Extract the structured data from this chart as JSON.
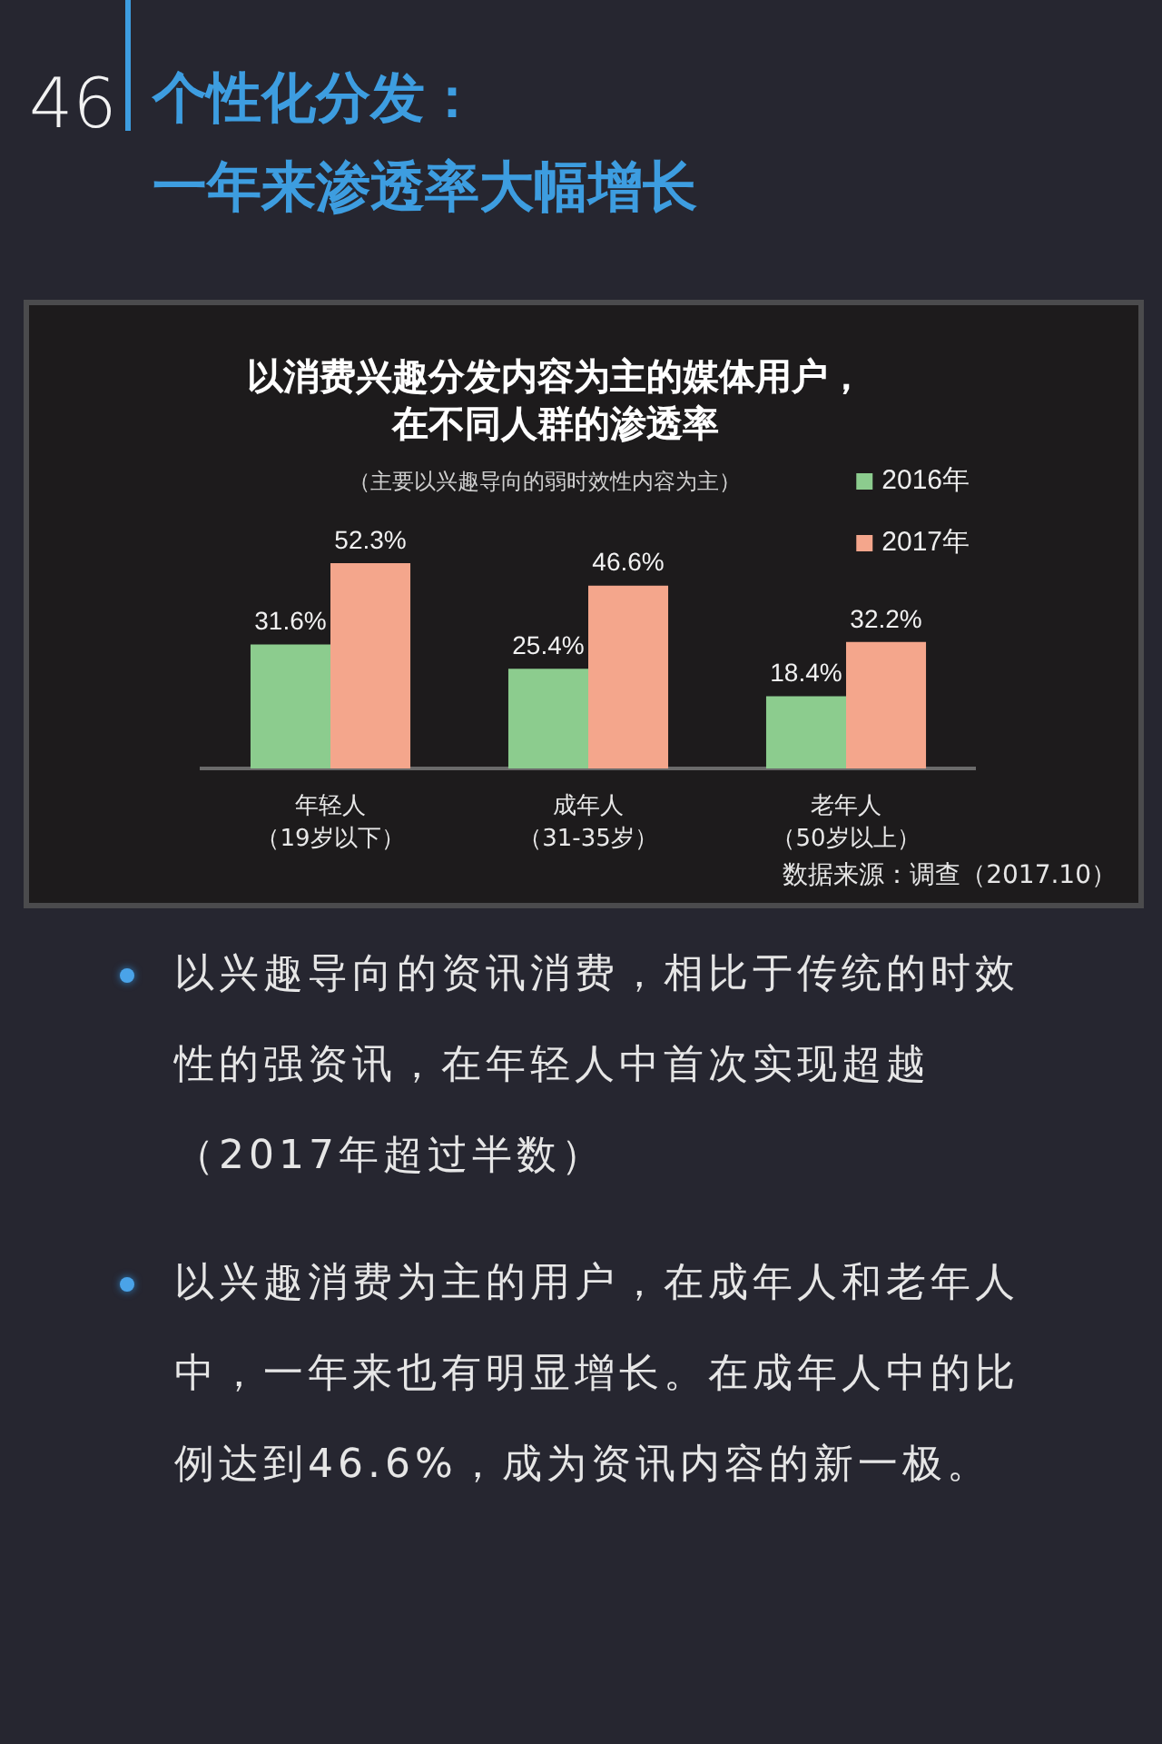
{
  "chart_data": {
    "type": "bar",
    "title": "个性化分发：一年来渗透率大幅增长",
    "subtitle": "以消费兴趣分发内容为主的媒体用户，在不同人群的渗透率",
    "categories": [
      "年轻人（19岁以下）",
      "成年人（31-35岁）",
      "老年人（50岁以上）"
    ],
    "series": [
      {
        "name": "2016年",
        "color": "#8ccc8e",
        "values": [
          31.6,
          25.4,
          18.4
        ],
        "value_labels": [
          "31.6%",
          "25.4%",
          "18.4%"
        ]
      },
      {
        "name": "2017年",
        "color": "#f4a68c",
        "values": [
          52.3,
          46.6,
          32.2
        ],
        "value_labels": [
          "52.3%",
          "46.6%",
          "32.2%"
        ]
      }
    ],
    "legend": "top right",
    "tick_labels": "x",
    "annotations": [
      "46",
      "（主要以兴趣导向的弱时效性内容为主）",
      "数据来源：调查（2017.10）",
      "以兴趣导向的资讯消费，相比于传统的时效性的强资讯，在年轻人中首次实现超越（2017年超过半数）",
      "以兴趣消费为主的用户，在成年人和老年人中，一年来也有明显增长。在成年人中的比例达到46.6%，成为资讯内容的新一极。"
    ]
  }
}
